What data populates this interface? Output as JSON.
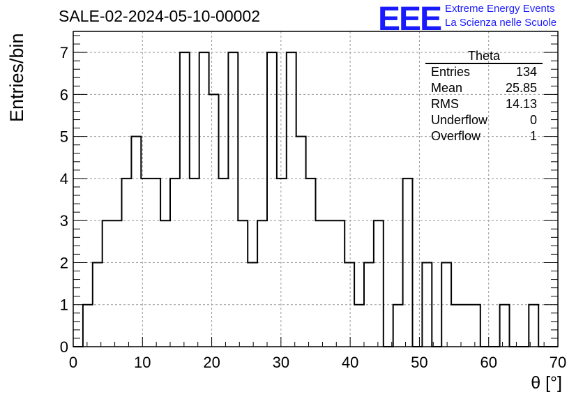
{
  "title": "SALE-02-2024-05-10-00002",
  "logo": {
    "mark": "EEE",
    "line1": "Extreme Energy Events",
    "line2": "La Scienza nelle Scuole",
    "color": "#1a1aff"
  },
  "stats": {
    "title": "Theta",
    "rows": [
      {
        "label": "Entries",
        "value": "134"
      },
      {
        "label": "Mean",
        "value": "25.85"
      },
      {
        "label": "RMS",
        "value": "14.13"
      },
      {
        "label": "Underflow",
        "value": "0"
      },
      {
        "label": "Overflow",
        "value": "1"
      }
    ]
  },
  "chart_data": {
    "type": "bar",
    "style": "step-histogram",
    "title": "SALE-02-2024-05-10-00002",
    "xlabel": "θ [°]",
    "ylabel": "Entries/bin",
    "xlim": [
      0,
      70
    ],
    "ylim": [
      0,
      7.5
    ],
    "bin_width": 1.4,
    "x_ticks": [
      0,
      10,
      20,
      30,
      40,
      50,
      60,
      70
    ],
    "y_ticks": [
      0,
      1,
      2,
      3,
      4,
      5,
      6,
      7
    ],
    "grid": true,
    "values": [
      0,
      1,
      2,
      3,
      3,
      4,
      5,
      4,
      4,
      3,
      4,
      7,
      4,
      7,
      6,
      4,
      7,
      3,
      2,
      3,
      7,
      4,
      7,
      5,
      4,
      3,
      3,
      3,
      2,
      1,
      2,
      3,
      0,
      1,
      4,
      0,
      2,
      0,
      2,
      1,
      1,
      1,
      0,
      0,
      1,
      0,
      0,
      1,
      0,
      0
    ]
  }
}
